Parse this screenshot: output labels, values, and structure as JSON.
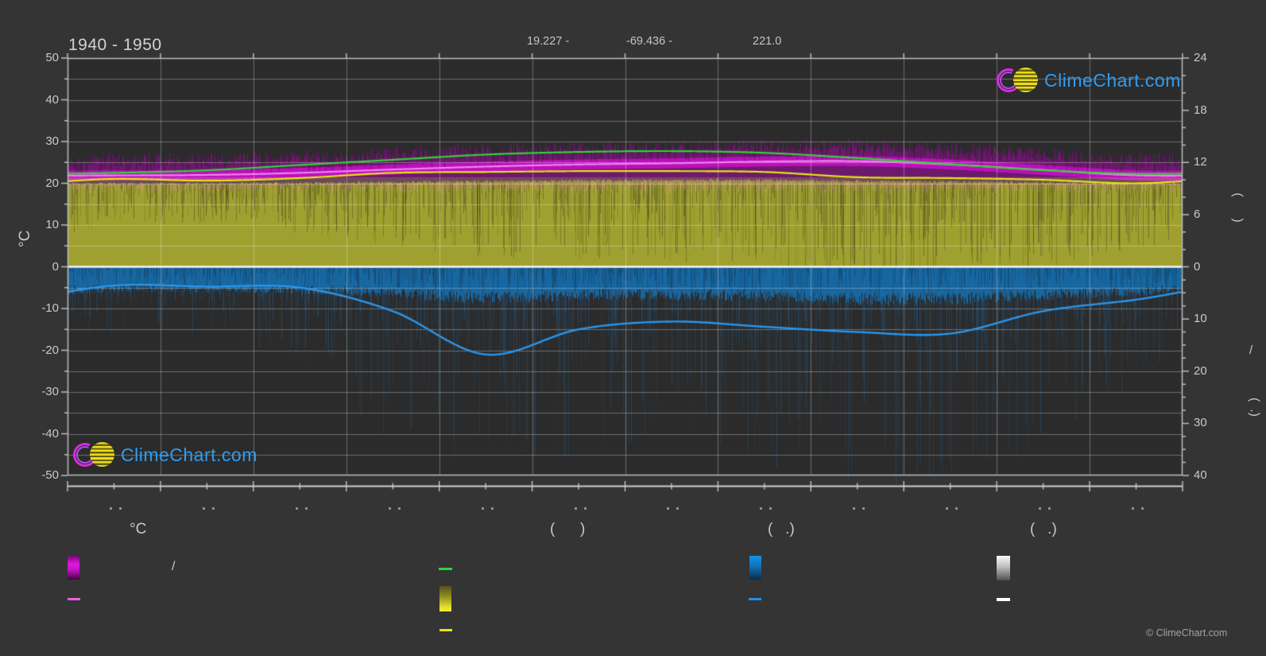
{
  "title": "1940 - 1950",
  "header": {
    "latitude_fragment": "19.227 -",
    "longitude_fragment": "-69.436 -",
    "elevation_fragment": "221.0"
  },
  "watermark": {
    "text": "ClimeChart.com",
    "brand_blue": "#2e9cf0"
  },
  "copyright": "© ClimeChart.com",
  "axes": {
    "left": {
      "label": "°C",
      "ticks": [
        50,
        40,
        30,
        20,
        10,
        0,
        -10,
        -20,
        -30,
        -40,
        -50
      ]
    },
    "right_sunshine": {
      "ticks": [
        24,
        18,
        12,
        6,
        0
      ],
      "rotated_label_fragment": "(      )"
    },
    "right_precip": {
      "ticks": [
        10,
        20,
        30,
        40
      ],
      "rotated_label_fragment_slash": "/",
      "rotated_label_fragment_parens": "(  .)"
    },
    "x": {
      "month_count": 12,
      "tick_label_glyphs_unreadable": true
    }
  },
  "legend": {
    "columns": [
      {
        "header": "°C",
        "items": [
          {
            "swatch": "magenta-gradient-bar",
            "label": "/"
          },
          {
            "swatch": "magenta-line",
            "label": ""
          }
        ]
      },
      {
        "header": "(      )",
        "items": [
          {
            "swatch": "green-line",
            "label": ""
          },
          {
            "swatch": "yellow-gradient-bar",
            "label": ""
          },
          {
            "swatch": "yellow-line",
            "label": ""
          }
        ]
      },
      {
        "header": "(   .)",
        "items": [
          {
            "swatch": "blue-gradient-bar",
            "label": ""
          },
          {
            "swatch": "blue-line",
            "label": ""
          }
        ]
      },
      {
        "header": "(   .)",
        "items": [
          {
            "swatch": "white-gradient-bar",
            "label": ""
          },
          {
            "swatch": "white-line",
            "label": ""
          }
        ]
      }
    ]
  },
  "chart_data": {
    "type": "area",
    "x": [
      1,
      2,
      3,
      4,
      5,
      6,
      7,
      8,
      9,
      10,
      11,
      12
    ],
    "axis_ranges": {
      "left_celsius": [
        -50,
        50
      ],
      "right_sunshine_hours": [
        0,
        24
      ],
      "right_precip_mm": [
        0,
        40
      ],
      "x_months": [
        0,
        12
      ]
    },
    "grid": {
      "vertical_per_month": true,
      "horizontal_step_celsius": 5
    },
    "series": [
      {
        "name": "day-length-line",
        "axis": "right_sunshine_hours",
        "color": "#2fd435",
        "values": [
          10.8,
          11.1,
          11.7,
          12.3,
          12.9,
          13.2,
          13.3,
          13.1,
          12.5,
          11.8,
          11.1,
          10.7
        ]
      },
      {
        "name": "avg-max-temperature-line",
        "axis": "left_celsius",
        "color": "#ef82ef",
        "values": [
          21.9,
          22.0,
          22.5,
          23.3,
          24.0,
          24.5,
          24.8,
          25.2,
          25.3,
          24.5,
          23.2,
          21.9
        ]
      },
      {
        "name": "avg-sunshine-line",
        "axis": "right_sunshine_hours",
        "color": "#e4e414",
        "values": [
          10.1,
          9.9,
          10.2,
          10.8,
          10.9,
          11.0,
          11.0,
          10.9,
          10.3,
          10.2,
          10.0,
          9.6
        ]
      },
      {
        "name": "avg-precipitation-line",
        "axis": "right_precip_mm",
        "color": "#2b95ea",
        "values": [
          3.6,
          3.8,
          4.0,
          8.5,
          16.8,
          12.0,
          10.5,
          11.5,
          12.5,
          12.8,
          8.5,
          6.3
        ]
      },
      {
        "name": "zero-snow-line",
        "axis": "right_precip_mm",
        "color": "#f2f2f2",
        "values": [
          0,
          0,
          0,
          0,
          0,
          0,
          0,
          0,
          0,
          0,
          0,
          0
        ]
      }
    ],
    "bands": [
      {
        "name": "daily-temperature-range-band",
        "color_core": "#c90fc9",
        "color_upper": "rgba(150,15,150,0.62)",
        "color_speckle": "rgba(50,20,50,0.45)",
        "top_offset_c": 2.3,
        "spike_max_c": 3.2,
        "core_half_width_c": 1.2,
        "lower_edge_c": 21.2
      },
      {
        "name": "min-temperature-pink-haze",
        "color": "rgba(244,152,176,0.30)",
        "top_c": 21.4,
        "base_c": 19.8,
        "spike_down_c": 2.4
      },
      {
        "name": "daily-sunshine-band",
        "color": "#9fa02f",
        "streak_color": "rgba(38,38,25,0.32)",
        "top_hours": [
          9.7,
          9.7,
          9.75,
          9.85,
          9.95,
          10.05,
          10.1,
          10.1,
          10.0,
          9.9,
          9.8,
          9.7
        ],
        "streak_factor": [
          0.55,
          0.5,
          0.6,
          0.75,
          0.9,
          0.9,
          0.95,
          1.0,
          1.15,
          1.15,
          1.05,
          0.8
        ]
      },
      {
        "name": "daily-precipitation-band",
        "color": "#17669e",
        "streak_color": "rgba(33,118,188,0.30)",
        "solid_mm": [
          3.3,
          3.3,
          3.5,
          4.0,
          4.8,
          4.3,
          4.3,
          4.5,
          4.9,
          4.9,
          4.3,
          3.8
        ],
        "deep_max_mm": 36,
        "deep_factor": [
          0.28,
          0.28,
          0.4,
          0.85,
          1.0,
          0.95,
          0.85,
          0.95,
          1.05,
          1.05,
          0.85,
          0.55
        ]
      }
    ]
  }
}
